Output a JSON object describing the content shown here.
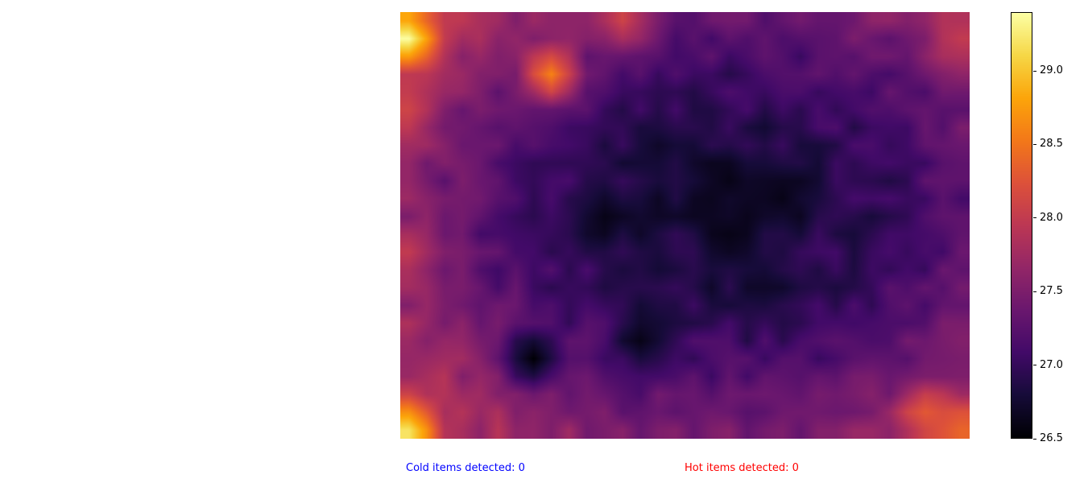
{
  "chart_data": {
    "type": "heatmap",
    "colormap": "inferno",
    "value_range": [
      26.5,
      29.4
    ],
    "colorbar_ticks": [
      "26.5",
      "27.0",
      "27.5",
      "28.0",
      "28.5",
      "29.0"
    ],
    "grid": false,
    "axes_visible": false,
    "grid_size": {
      "rows": 24,
      "cols": 32
    },
    "hotspots": [
      {
        "col": 0,
        "row": 1,
        "value": 29.4
      },
      {
        "col": 0,
        "row": 23,
        "value": 29.2
      },
      {
        "col": 8,
        "row": 3,
        "value": 28.6
      },
      {
        "col": 12,
        "row": 0,
        "value": 28.1
      },
      {
        "col": 31,
        "row": 1,
        "value": 28.0
      },
      {
        "col": 31,
        "row": 23,
        "value": 28.4
      },
      {
        "col": 29,
        "row": 22,
        "value": 28.3
      },
      {
        "col": 0,
        "row": 13,
        "value": 28.0
      },
      {
        "col": 0,
        "row": 5,
        "value": 28.1
      }
    ],
    "coldspots": [
      {
        "col": 7,
        "row": 19,
        "value": 26.5
      },
      {
        "col": 11,
        "row": 11,
        "value": 26.6
      },
      {
        "col": 18,
        "row": 9,
        "value": 26.6
      },
      {
        "col": 18,
        "row": 12,
        "value": 26.6
      },
      {
        "col": 13,
        "row": 18,
        "value": 26.6
      },
      {
        "col": 21,
        "row": 10,
        "value": 26.6
      },
      {
        "col": 20,
        "row": 15,
        "value": 26.7
      },
      {
        "col": 14,
        "row": 7,
        "value": 26.7
      }
    ]
  },
  "status": {
    "cold_label": "Cold items detected: 0",
    "hot_label": "Hot items detected: 0",
    "cold_color": "#0000ff",
    "hot_color": "#ff0000"
  }
}
